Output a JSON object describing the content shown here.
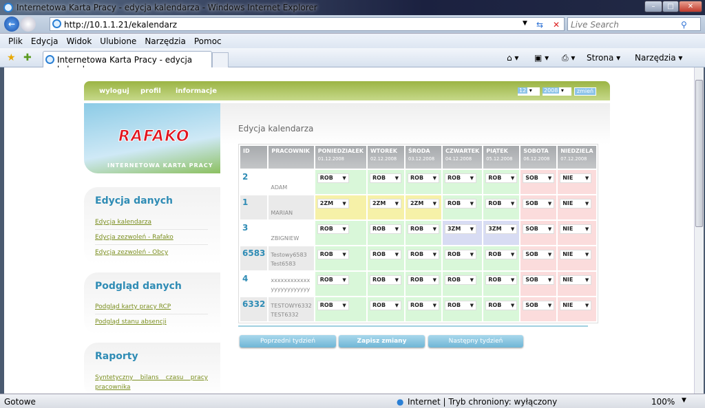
{
  "window": {
    "title": "Internetowa Karta Pracy - edycja kalendarza - Windows Internet Explorer",
    "minimize": "–",
    "maximize": "□",
    "close": "✕"
  },
  "addressbar": {
    "url": "http://10.1.1.21/ekalendarz",
    "search_placeholder": "Live Search"
  },
  "menu": [
    "Plik",
    "Edycja",
    "Widok",
    "Ulubione",
    "Narzędzia",
    "Pomoc"
  ],
  "tab": {
    "label": "Internetowa Karta Pracy - edycja kalendarza"
  },
  "toolbar": {
    "page": "Strona ▾",
    "tools": "Narzędzia ▾"
  },
  "status": {
    "left": "Gotowe",
    "zone": "Internet | Tryb chroniony: wyłączony",
    "zoom": "100%"
  },
  "header": {
    "links": [
      "wyloguj",
      "profil",
      "informacje"
    ],
    "month": "12",
    "year": "2008",
    "change": "zmień",
    "accent": "#9bb444"
  },
  "logo": {
    "brand": "RAFAKO",
    "subtitle": "INTERNETOWA KARTA PRACY"
  },
  "sidebar": [
    {
      "title": "Edycja danych",
      "links": [
        "Edycja kalendarza",
        "Edycja zezwoleń - Rafako",
        "Edycja zezwoleń - Obcy"
      ]
    },
    {
      "title": "Podgląd danych",
      "links": [
        "Podgląd karty pracy RCP",
        "Podgląd stanu absencji"
      ]
    },
    {
      "title": "Raporty",
      "links": [
        "Syntetyczny bilans czasu pracy pracownika"
      ]
    }
  ],
  "main": {
    "title": "Edycja kalendarza",
    "columns": [
      {
        "label": "ID"
      },
      {
        "label": "PRACOWNIK"
      },
      {
        "label": "PONIEDZIAŁEK",
        "date": "01.12.2008"
      },
      {
        "label": "WTOREK",
        "date": "02.12.2008"
      },
      {
        "label": "ŚRODA",
        "date": "03.12.2008"
      },
      {
        "label": "CZWARTEK",
        "date": "04.12.2008"
      },
      {
        "label": "PIĄTEK",
        "date": "05.12.2008"
      },
      {
        "label": "SOBOTA",
        "date": "06.12.2008"
      },
      {
        "label": "NIEDZIELA",
        "date": "07.12.2008"
      }
    ],
    "rows": [
      {
        "id": "2",
        "name1": "",
        "name2": "ADAM",
        "days": [
          "ROB",
          "ROB",
          "ROB",
          "ROB",
          "ROB",
          "SOB",
          "NIE"
        ]
      },
      {
        "id": "1",
        "name1": "",
        "name2": "MARIAN",
        "days": [
          "2ZM",
          "2ZM",
          "2ZM",
          "ROB",
          "ROB",
          "SOB",
          "NIE"
        ]
      },
      {
        "id": "3",
        "name1": "",
        "name2": "ZBIGNIEW",
        "days": [
          "ROB",
          "ROB",
          "ROB",
          "3ZM",
          "3ZM",
          "SOB",
          "NIE"
        ]
      },
      {
        "id": "6583",
        "name1": "Testowy6583",
        "name2": "Test6583",
        "days": [
          "ROB",
          "ROB",
          "ROB",
          "ROB",
          "ROB",
          "SOB",
          "NIE"
        ]
      },
      {
        "id": "4",
        "name1": "xxxxxxxxxxxx",
        "name2": "yyyyyyyyyyyy",
        "days": [
          "ROB",
          "ROB",
          "ROB",
          "ROB",
          "ROB",
          "SOB",
          "NIE"
        ]
      },
      {
        "id": "6332",
        "name1": "TESTOWY6332",
        "name2": "TEST6332",
        "days": [
          "ROB",
          "ROB",
          "ROB",
          "ROB",
          "ROB",
          "SOB",
          "NIE"
        ]
      }
    ],
    "buttons": {
      "prev": "Poprzedni tydzień",
      "save": "Zapisz zmiany",
      "next": "Następny tydzień"
    },
    "colors": {
      "ROB": "#d9f7d9",
      "2ZM": "#f6f1a8",
      "3ZM": "#d8dcf3",
      "SOB": "#fbdcdc",
      "NIE": "#fbdcdc"
    }
  }
}
